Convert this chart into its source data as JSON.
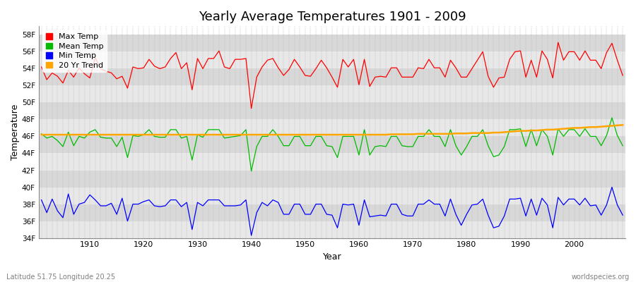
{
  "title": "Yearly Average Temperatures 1901 - 2009",
  "xlabel": "Year",
  "ylabel": "Temperature",
  "subtitle_left": "Latitude 51.75 Longitude 20.25",
  "subtitle_right": "worldspecies.org",
  "years": [
    1901,
    1902,
    1903,
    1904,
    1905,
    1906,
    1907,
    1908,
    1909,
    1910,
    1911,
    1912,
    1913,
    1914,
    1915,
    1916,
    1917,
    1918,
    1919,
    1920,
    1921,
    1922,
    1923,
    1924,
    1925,
    1926,
    1927,
    1928,
    1929,
    1930,
    1931,
    1932,
    1933,
    1934,
    1935,
    1936,
    1937,
    1938,
    1939,
    1940,
    1941,
    1942,
    1943,
    1944,
    1945,
    1946,
    1947,
    1948,
    1949,
    1950,
    1951,
    1952,
    1953,
    1954,
    1955,
    1956,
    1957,
    1958,
    1959,
    1960,
    1961,
    1962,
    1963,
    1964,
    1965,
    1966,
    1967,
    1968,
    1969,
    1970,
    1971,
    1972,
    1973,
    1974,
    1975,
    1976,
    1977,
    1978,
    1979,
    1980,
    1981,
    1982,
    1983,
    1984,
    1985,
    1986,
    1987,
    1988,
    1989,
    1990,
    1991,
    1992,
    1993,
    1994,
    1995,
    1996,
    1997,
    1998,
    1999,
    2000,
    2001,
    2002,
    2003,
    2004,
    2005,
    2006,
    2007,
    2008,
    2009
  ],
  "max_temp": [
    54.2,
    52.7,
    53.5,
    53.1,
    52.3,
    53.8,
    53.0,
    54.1,
    53.4,
    52.9,
    55.3,
    54.0,
    53.7,
    53.5,
    52.8,
    53.1,
    51.7,
    54.2,
    54.0,
    54.1,
    55.1,
    54.3,
    54.0,
    54.2,
    55.2,
    55.9,
    54.0,
    54.7,
    51.5,
    55.2,
    54.0,
    55.2,
    55.2,
    56.1,
    54.2,
    54.0,
    55.1,
    55.1,
    55.2,
    49.3,
    53.0,
    54.2,
    55.0,
    55.2,
    54.1,
    53.2,
    53.9,
    55.1,
    54.2,
    53.2,
    53.1,
    54.0,
    55.0,
    54.1,
    53.0,
    51.8,
    55.1,
    54.2,
    55.1,
    52.1,
    55.1,
    51.9,
    53.0,
    53.1,
    53.0,
    54.1,
    54.1,
    53.0,
    53.0,
    53.0,
    54.1,
    54.0,
    55.1,
    54.1,
    54.1,
    53.0,
    55.0,
    54.1,
    53.0,
    53.0,
    54.0,
    55.0,
    56.0,
    53.1,
    51.8,
    52.9,
    53.0,
    55.1,
    56.0,
    56.1,
    53.0,
    55.0,
    53.0,
    56.1,
    55.1,
    52.9,
    57.1,
    55.0,
    56.0,
    56.0,
    55.0,
    56.1,
    55.0,
    55.0,
    54.0,
    55.9,
    57.0,
    55.0,
    53.2
  ],
  "mean_temp": [
    46.3,
    45.8,
    46.0,
    45.5,
    44.8,
    46.5,
    44.9,
    46.0,
    45.8,
    46.5,
    46.8,
    45.9,
    45.8,
    45.8,
    44.8,
    45.9,
    43.5,
    46.1,
    46.0,
    46.2,
    46.8,
    46.0,
    45.9,
    45.9,
    46.8,
    46.8,
    45.8,
    46.0,
    43.2,
    46.2,
    45.9,
    46.8,
    46.8,
    46.8,
    45.8,
    45.9,
    46.0,
    46.1,
    46.8,
    41.9,
    44.8,
    46.0,
    46.0,
    46.8,
    46.0,
    44.9,
    44.9,
    46.0,
    46.0,
    44.9,
    44.9,
    46.0,
    46.0,
    44.9,
    44.8,
    43.5,
    46.0,
    46.0,
    46.0,
    43.8,
    46.8,
    43.8,
    44.8,
    44.9,
    44.8,
    46.0,
    46.0,
    44.9,
    44.8,
    44.8,
    46.0,
    46.0,
    46.8,
    46.0,
    46.0,
    44.8,
    46.8,
    44.9,
    43.8,
    44.8,
    46.0,
    46.0,
    46.8,
    44.9,
    43.6,
    43.8,
    44.8,
    46.8,
    46.8,
    46.9,
    44.8,
    46.8,
    44.9,
    46.8,
    46.0,
    43.8,
    46.9,
    46.0,
    46.8,
    46.8,
    46.0,
    46.9,
    46.0,
    46.0,
    44.9,
    46.1,
    48.2,
    46.1,
    44.9
  ],
  "min_temp": [
    38.5,
    37.0,
    38.6,
    37.2,
    36.4,
    39.2,
    36.8,
    38.0,
    38.2,
    39.1,
    38.5,
    37.8,
    37.8,
    38.1,
    36.8,
    38.7,
    36.0,
    38.0,
    38.0,
    38.3,
    38.5,
    37.8,
    37.7,
    37.8,
    38.5,
    38.5,
    37.7,
    38.2,
    35.0,
    38.2,
    37.8,
    38.5,
    38.5,
    38.5,
    37.8,
    37.8,
    37.8,
    37.9,
    38.5,
    34.3,
    37.0,
    38.2,
    37.8,
    38.5,
    38.2,
    36.8,
    36.8,
    38.0,
    38.0,
    36.8,
    36.8,
    38.0,
    38.0,
    36.8,
    36.7,
    35.2,
    38.0,
    37.9,
    38.0,
    35.5,
    38.5,
    36.5,
    36.6,
    36.7,
    36.6,
    38.0,
    38.0,
    36.8,
    36.6,
    36.6,
    38.0,
    38.0,
    38.5,
    38.0,
    38.0,
    36.6,
    38.6,
    36.8,
    35.5,
    36.8,
    37.9,
    38.0,
    38.6,
    36.7,
    35.2,
    35.4,
    36.6,
    38.6,
    38.6,
    38.7,
    36.6,
    38.6,
    36.7,
    38.7,
    37.9,
    35.2,
    38.8,
    37.9,
    38.6,
    38.6,
    37.9,
    38.7,
    37.8,
    37.9,
    36.7,
    37.9,
    40.0,
    37.9,
    36.7
  ],
  "trend": [
    46.2,
    46.2,
    46.2,
    46.2,
    46.2,
    46.2,
    46.2,
    46.2,
    46.2,
    46.2,
    46.2,
    46.2,
    46.2,
    46.2,
    46.2,
    46.2,
    46.2,
    46.2,
    46.2,
    46.2,
    46.2,
    46.2,
    46.2,
    46.2,
    46.2,
    46.2,
    46.2,
    46.2,
    46.2,
    46.2,
    46.2,
    46.2,
    46.2,
    46.2,
    46.2,
    46.2,
    46.2,
    46.2,
    46.2,
    46.2,
    46.2,
    46.2,
    46.2,
    46.2,
    46.2,
    46.2,
    46.2,
    46.2,
    46.2,
    46.2,
    46.2,
    46.2,
    46.2,
    46.2,
    46.2,
    46.2,
    46.2,
    46.2,
    46.2,
    46.2,
    46.2,
    46.2,
    46.2,
    46.2,
    46.2,
    46.25,
    46.25,
    46.25,
    46.25,
    46.25,
    46.3,
    46.3,
    46.3,
    46.3,
    46.3,
    46.3,
    46.3,
    46.35,
    46.35,
    46.35,
    46.4,
    46.4,
    46.4,
    46.4,
    46.45,
    46.45,
    46.5,
    46.55,
    46.6,
    46.65,
    46.65,
    46.7,
    46.7,
    46.75,
    46.8,
    46.8,
    46.85,
    46.9,
    46.95,
    47.0,
    47.0,
    47.05,
    47.1,
    47.1,
    47.15,
    47.2,
    47.25,
    47.3,
    47.35
  ],
  "max_color": "#ff0000",
  "mean_color": "#00bb00",
  "min_color": "#0000ff",
  "trend_color": "#ffa500",
  "bg_color": "#ffffff",
  "grid_color": "#bbbbbb",
  "band_colors": [
    "#e8e8e8",
    "#d8d8d8"
  ],
  "ylim": [
    34,
    59
  ],
  "yticks": [
    34,
    36,
    38,
    40,
    42,
    44,
    46,
    48,
    50,
    52,
    54,
    56,
    58
  ],
  "xticks": [
    1910,
    1920,
    1930,
    1940,
    1950,
    1960,
    1970,
    1980,
    1990,
    2000
  ],
  "legend_labels": [
    "Max Temp",
    "Mean Temp",
    "Min Temp",
    "20 Yr Trend"
  ]
}
